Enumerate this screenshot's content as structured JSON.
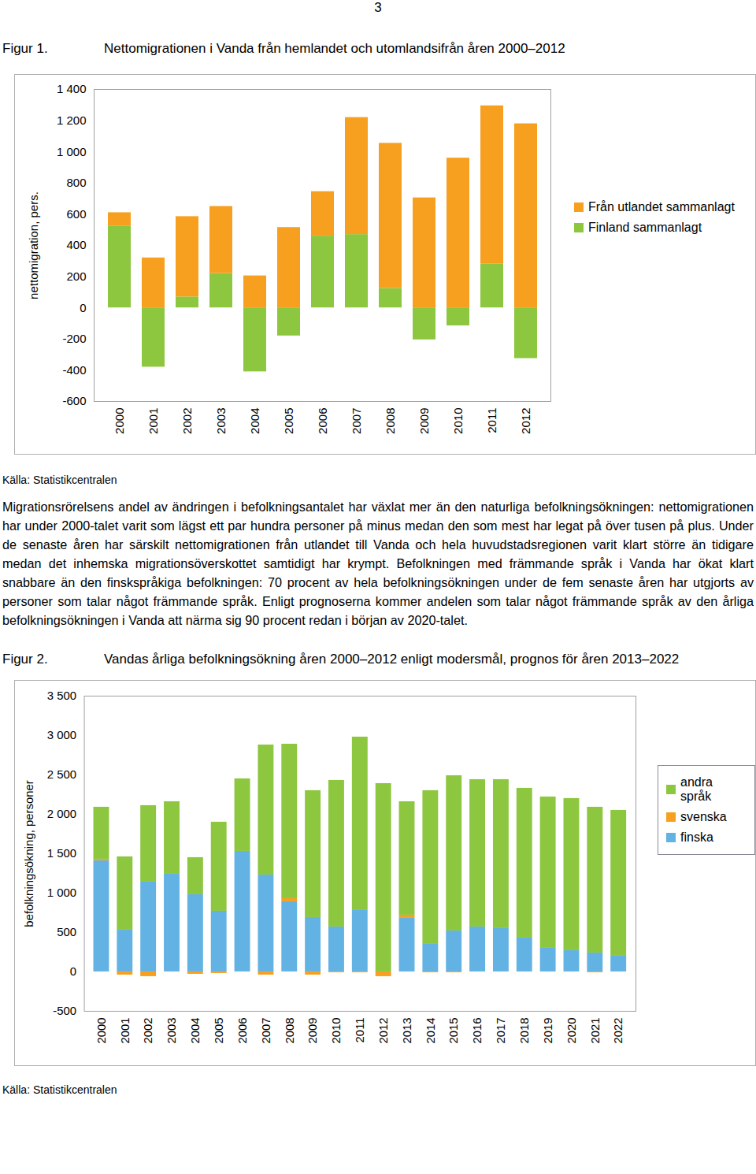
{
  "page_number": "3",
  "chart_data": [
    {
      "type": "bar",
      "stacked": true,
      "figure_label": "Figur 1.",
      "title": "Nettomigrationen i Vanda från hemlandet och utomlandsifrån åren 2000–2012",
      "y_label": "nettomigration, pers.",
      "categories": [
        "2000",
        "2001",
        "2002",
        "2003",
        "2004",
        "2005",
        "2006",
        "2007",
        "2008",
        "2009",
        "2010",
        "2011",
        "2012"
      ],
      "series": [
        {
          "name": "Finland sammanlagt",
          "color": "#8dc63f",
          "values": [
            525,
            -380,
            70,
            220,
            -410,
            -180,
            460,
            470,
            125,
            -205,
            -115,
            280,
            -325
          ]
        },
        {
          "name": "Från utlandet sammanlagt",
          "color": "#f7a020",
          "values": [
            85,
            320,
            515,
            430,
            205,
            515,
            285,
            750,
            930,
            705,
            960,
            1015,
            1180
          ]
        }
      ],
      "ylim": [
        -600,
        1400
      ],
      "yticks": [
        -600,
        -400,
        -200,
        0,
        200,
        400,
        600,
        800,
        {
          "value": 1000,
          "label": "1 000"
        },
        {
          "value": 1200,
          "label": "1 200"
        },
        {
          "value": 1400,
          "label": "1 400"
        }
      ],
      "grid": false,
      "legend": "right",
      "source": "Källa: Statistikcentralen"
    },
    {
      "type": "bar",
      "stacked": true,
      "figure_label": "Figur 2.",
      "title": "Vandas årliga befolkningsökning åren 2000–2012 enligt modersmål, prognos för åren 2013–2022",
      "y_label": "befolkningsökning, personer",
      "categories": [
        "2000",
        "2001",
        "2002",
        "2003",
        "2004",
        "2005",
        "2006",
        "2007",
        "2008",
        "2009",
        "2010",
        "2011",
        "2012",
        "2013",
        "2014",
        "2015",
        "2016",
        "2017",
        "2018",
        "2019",
        "2020",
        "2021",
        "2022"
      ],
      "series": [
        {
          "name": "finska",
          "color": "#62b3e4",
          "values": [
            1410,
            530,
            1140,
            1240,
            980,
            770,
            1530,
            1230,
            890,
            690,
            570,
            780,
            0,
            680,
            350,
            520,
            570,
            550,
            430,
            300,
            270,
            240,
            200
          ]
        },
        {
          "name": "svenska",
          "color": "#f7a020",
          "values": [
            20,
            -40,
            -60,
            0,
            -30,
            -20,
            0,
            -40,
            40,
            -40,
            -10,
            -10,
            -60,
            40,
            -10,
            -10,
            0,
            0,
            0,
            0,
            0,
            -10,
            0
          ]
        },
        {
          "name": "andra språk",
          "color": "#8dc63f",
          "values": [
            660,
            930,
            970,
            920,
            470,
            1130,
            920,
            1650,
            1960,
            1610,
            1860,
            2200,
            2390,
            1440,
            1950,
            1970,
            1870,
            1890,
            1900,
            1920,
            1930,
            1850,
            1850
          ]
        }
      ],
      "ylim": [
        -500,
        3500
      ],
      "yticks": [
        -500,
        0,
        500,
        {
          "value": 1000,
          "label": "1 000"
        },
        {
          "value": 1500,
          "label": "1 500"
        },
        {
          "value": 2000,
          "label": "2 000"
        },
        {
          "value": 2500,
          "label": "2 500"
        },
        {
          "value": 3000,
          "label": "3 000"
        },
        {
          "value": 3500,
          "label": "3 500"
        }
      ],
      "grid": false,
      "legend": "right",
      "source": "Källa: Statistikcentralen"
    }
  ],
  "body_text": "Migrationsrörelsens andel av ändringen i befolkningsantalet har växlat mer än den naturliga befolkningsökningen: nettomigrationen har under 2000-talet varit som lägst ett par hundra personer på minus medan den som mest har legat på över tusen på plus. Under de senaste åren har särskilt nettomigrationen från utlandet till Vanda och hela huvudstadsregionen varit klart större än tidigare medan det inhemska migrationsöverskottet samtidigt har krympt. Befolkningen med främmande språk i Vanda har ökat klart snabbare än den finskspråkiga befolkningen: 70 procent av hela befolkningsökningen under de fem senaste åren har utgjorts av personer som talar något främmande språk. Enligt prognoserna kommer andelen som talar något främmande språk av den årliga befolkningsökningen i Vanda att närma sig 90 procent redan i början av 2020-talet."
}
